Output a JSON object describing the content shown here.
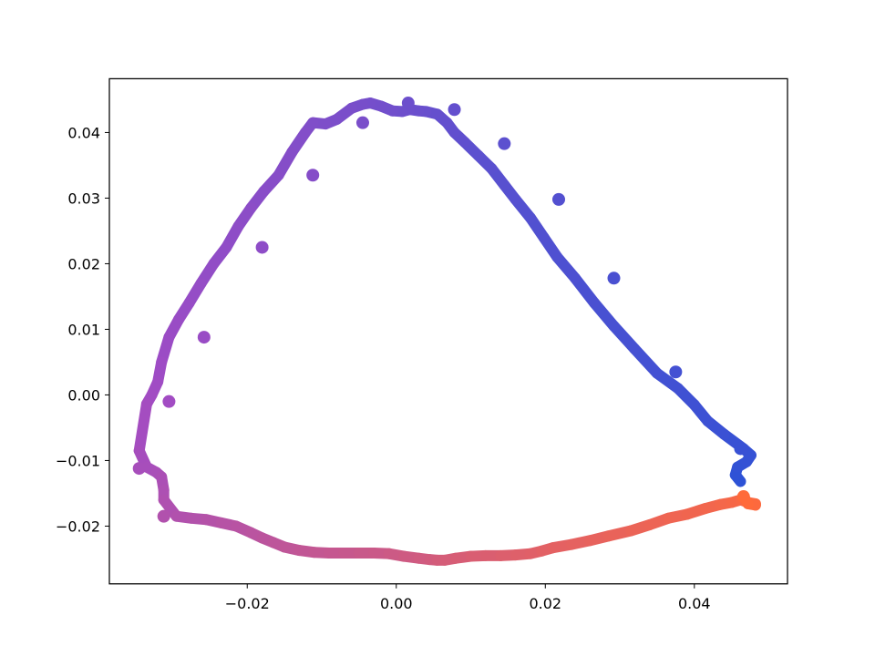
{
  "chart_data": {
    "type": "line",
    "title": "",
    "xlabel": "",
    "ylabel": "",
    "xlim": [
      -0.0385,
      0.0525
    ],
    "ylim": [
      -0.0288,
      0.0482
    ],
    "x_ticks": [
      {
        "value": -0.02,
        "label": "−0.02"
      },
      {
        "value": 0.0,
        "label": "0.00"
      },
      {
        "value": 0.02,
        "label": "0.02"
      },
      {
        "value": 0.04,
        "label": "0.04"
      }
    ],
    "y_ticks": [
      {
        "value": -0.02,
        "label": "−0.02"
      },
      {
        "value": -0.01,
        "label": "−0.01"
      },
      {
        "value": 0.0,
        "label": "0.00"
      },
      {
        "value": 0.01,
        "label": "0.01"
      },
      {
        "value": 0.02,
        "label": "0.02"
      },
      {
        "value": 0.03,
        "label": "0.03"
      },
      {
        "value": 0.04,
        "label": "0.04"
      }
    ],
    "grid": false,
    "color_start": "#2d52d6",
    "color_mid": "#a14cc4",
    "color_end": "#ff6a3a",
    "series": [
      {
        "x": [
          0.0462,
          0.0455,
          0.0458,
          0.047,
          0.0476,
          0.0466,
          0.044,
          0.0418,
          0.04,
          0.0378,
          0.035,
          0.032,
          0.0292,
          0.0266,
          0.024,
          0.0216,
          0.0198,
          0.018,
          0.016,
          0.0145,
          0.0128,
          0.011,
          0.0092,
          0.0078,
          0.0068,
          0.0055,
          0.004,
          0.003,
          0.0018,
          0.0008,
          -0.0005,
          -0.002,
          -0.0035,
          -0.0045,
          -0.006,
          -0.008,
          -0.0095,
          -0.0112,
          -0.0122,
          -0.014,
          -0.0158,
          -0.0178,
          -0.0195,
          -0.0212,
          -0.0228,
          -0.0245,
          -0.0262,
          -0.0278,
          -0.0292,
          -0.0305,
          -0.0315,
          -0.032,
          -0.0328,
          -0.0335,
          -0.0345,
          -0.0335,
          -0.0322,
          -0.0315,
          -0.0312,
          -0.0312,
          -0.0295,
          -0.0275,
          -0.0255,
          -0.0235,
          -0.0215,
          -0.0195,
          -0.018,
          -0.0165,
          -0.015,
          -0.013,
          -0.011,
          -0.009,
          -0.007,
          -0.005,
          -0.003,
          -0.001,
          0.001,
          0.003,
          0.0045,
          0.0055,
          0.0065,
          0.008,
          0.01,
          0.012,
          0.014,
          0.016,
          0.018,
          0.0195,
          0.021,
          0.0235,
          0.026,
          0.0285,
          0.0315,
          0.034,
          0.0365,
          0.039,
          0.0415,
          0.0435,
          0.045,
          0.0462,
          0.0472,
          0.0482,
          0.0482,
          0.0472,
          0.0466
        ],
        "y": [
          -0.0132,
          -0.0122,
          -0.011,
          -0.0102,
          -0.0092,
          -0.0082,
          -0.006,
          -0.004,
          -0.0015,
          0.001,
          0.0033,
          0.007,
          0.0105,
          0.014,
          0.0178,
          0.021,
          0.024,
          0.027,
          0.0298,
          0.032,
          0.0345,
          0.0365,
          0.0385,
          0.04,
          0.0415,
          0.0428,
          0.0432,
          0.0433,
          0.0435,
          0.0432,
          0.0433,
          0.044,
          0.0445,
          0.0443,
          0.0437,
          0.042,
          0.0413,
          0.0415,
          0.04,
          0.037,
          0.0335,
          0.031,
          0.0285,
          0.0257,
          0.0225,
          0.02,
          0.017,
          0.014,
          0.0115,
          0.0088,
          0.005,
          0.002,
          0.0,
          -0.0014,
          -0.0085,
          -0.011,
          -0.0118,
          -0.0125,
          -0.0145,
          -0.016,
          -0.0185,
          -0.0188,
          -0.019,
          -0.0195,
          -0.02,
          -0.021,
          -0.0218,
          -0.0225,
          -0.0232,
          -0.0237,
          -0.024,
          -0.0241,
          -0.0241,
          -0.0241,
          -0.0241,
          -0.0242,
          -0.0246,
          -0.0249,
          -0.0251,
          -0.0252,
          -0.0252,
          -0.0249,
          -0.0246,
          -0.0245,
          -0.0245,
          -0.0244,
          -0.0242,
          -0.0238,
          -0.0233,
          -0.0228,
          -0.0222,
          -0.0215,
          -0.0207,
          -0.0198,
          -0.0188,
          -0.0182,
          -0.0173,
          -0.0167,
          -0.0164,
          -0.016,
          -0.0164,
          -0.0166,
          -0.0168,
          -0.0166,
          -0.0155
        ],
        "markers_x": [
          0.0016,
          0.0078,
          0.0145,
          0.0218,
          0.0292,
          0.0375,
          0.0462,
          0.0466,
          -0.0045,
          -0.0112,
          -0.018,
          -0.0258,
          -0.0305,
          -0.0345,
          -0.0312
        ],
        "markers_y": [
          0.0445,
          0.0435,
          0.0383,
          0.0298,
          0.0178,
          0.0035,
          -0.0082,
          -0.0155,
          0.0415,
          0.0335,
          0.0225,
          0.0088,
          -0.001,
          -0.0112,
          -0.0185
        ]
      }
    ]
  }
}
